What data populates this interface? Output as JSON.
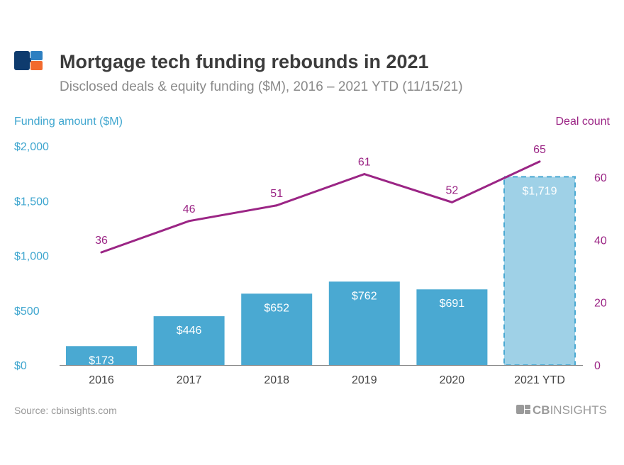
{
  "header": {
    "title": "Mortgage tech funding rebounds in 2021",
    "subtitle": "Disclosed deals & equity funding ($M), 2016 – 2021 YTD (11/15/21)"
  },
  "footer": {
    "source": "Source: cbinsights.com",
    "brand": "CBINSIGHTS",
    "brand_bold": "CB",
    "brand_light": "INSIGHTS"
  },
  "colors": {
    "bar": "#4aa9d2",
    "bar_ytd": "#9fd1e7",
    "line": "#9b2585",
    "logo_navy": "#0e3b6e",
    "logo_blue": "#2d7fc1",
    "logo_orange": "#f26a2e"
  },
  "chart_data": {
    "type": "bar",
    "categories": [
      "2016",
      "2017",
      "2018",
      "2019",
      "2020",
      "2021 YTD"
    ],
    "series": [
      {
        "name": "Funding amount ($M)",
        "type": "bar",
        "axis": "left",
        "values": [
          173,
          446,
          652,
          762,
          691,
          1719
        ],
        "labels": [
          "$173",
          "$446",
          "$652",
          "$762",
          "$691",
          "$1,719"
        ]
      },
      {
        "name": "Deal count",
        "type": "line",
        "axis": "right",
        "values": [
          36,
          46,
          51,
          61,
          52,
          65
        ],
        "labels": [
          "36",
          "46",
          "51",
          "61",
          "52",
          "65"
        ]
      }
    ],
    "left_axis": {
      "label": "Funding amount ($M)",
      "ylim": [
        0,
        2000
      ],
      "ticks": [
        0,
        500,
        1000,
        1500,
        2000
      ],
      "tick_labels": [
        "$0",
        "$500",
        "$1,000",
        "$1,500",
        "$2,000"
      ]
    },
    "right_axis": {
      "label": "Deal count",
      "ylim": [
        0,
        70
      ],
      "ticks": [
        0,
        20,
        40,
        60
      ],
      "tick_labels": [
        "0",
        "20",
        "40",
        "60"
      ]
    },
    "grid": false,
    "note": "2021 YTD bar drawn lighter with dashed outline"
  }
}
